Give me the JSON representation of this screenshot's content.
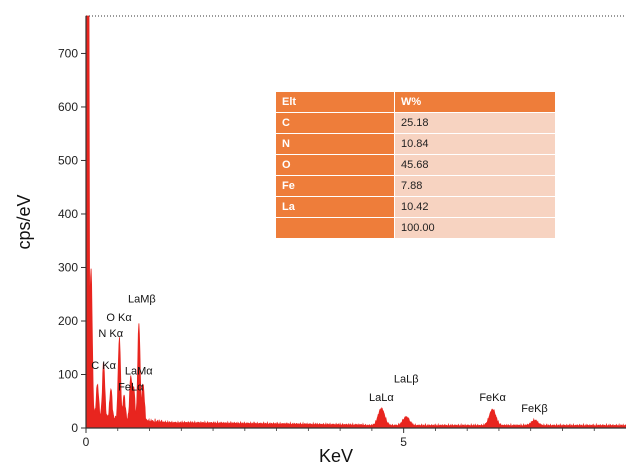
{
  "chart_data": {
    "type": "line",
    "xlabel": "KeV",
    "ylabel": "cps/eV",
    "xlim": [
      0,
      8.5
    ],
    "ylim": [
      0,
      770
    ],
    "x_ticks": [
      0,
      5
    ],
    "y_ticks": [
      0,
      100,
      200,
      300,
      400,
      500,
      600,
      700
    ],
    "grid": false,
    "series_color": "#e8251f",
    "peaks": [
      {
        "x": 0.02,
        "y": 760
      },
      {
        "x": 0.08,
        "y": 270
      },
      {
        "x": 0.18,
        "y": 60
      },
      {
        "x": 0.277,
        "y": 102
      },
      {
        "x": 0.392,
        "y": 55
      },
      {
        "x": 0.525,
        "y": 150
      },
      {
        "x": 0.6,
        "y": 45
      },
      {
        "x": 0.705,
        "y": 80
      },
      {
        "x": 0.75,
        "y": 60
      },
      {
        "x": 0.833,
        "y": 180
      },
      {
        "x": 0.9,
        "y": 70
      },
      {
        "x": 4.65,
        "y": 32
      },
      {
        "x": 5.04,
        "y": 16
      },
      {
        "x": 6.4,
        "y": 30
      },
      {
        "x": 7.06,
        "y": 10
      }
    ],
    "annotations": [
      {
        "text": "LaMβ",
        "x": 0.88,
        "y": 235
      },
      {
        "text": "O Kα",
        "x": 0.52,
        "y": 200
      },
      {
        "text": "N Kα",
        "x": 0.39,
        "y": 170
      },
      {
        "text": "C Kα",
        "x": 0.277,
        "y": 110
      },
      {
        "text": "LaMα",
        "x": 0.83,
        "y": 100
      },
      {
        "text": "FeLα",
        "x": 0.705,
        "y": 70
      },
      {
        "text": "LaLα",
        "x": 4.65,
        "y": 50
      },
      {
        "text": "LaLβ",
        "x": 5.04,
        "y": 85
      },
      {
        "text": "FeKα",
        "x": 6.4,
        "y": 50
      },
      {
        "text": "FeKβ",
        "x": 7.06,
        "y": 30
      }
    ]
  },
  "table": {
    "header": [
      "Elt",
      "W%"
    ],
    "rows": [
      {
        "elt": "C",
        "wt": "25.18"
      },
      {
        "elt": "N",
        "wt": "10.84"
      },
      {
        "elt": "O",
        "wt": "45.68"
      },
      {
        "elt": "Fe",
        "wt": "7.88"
      },
      {
        "elt": "La",
        "wt": "10.42"
      },
      {
        "elt": "",
        "wt": "100.00"
      }
    ]
  }
}
